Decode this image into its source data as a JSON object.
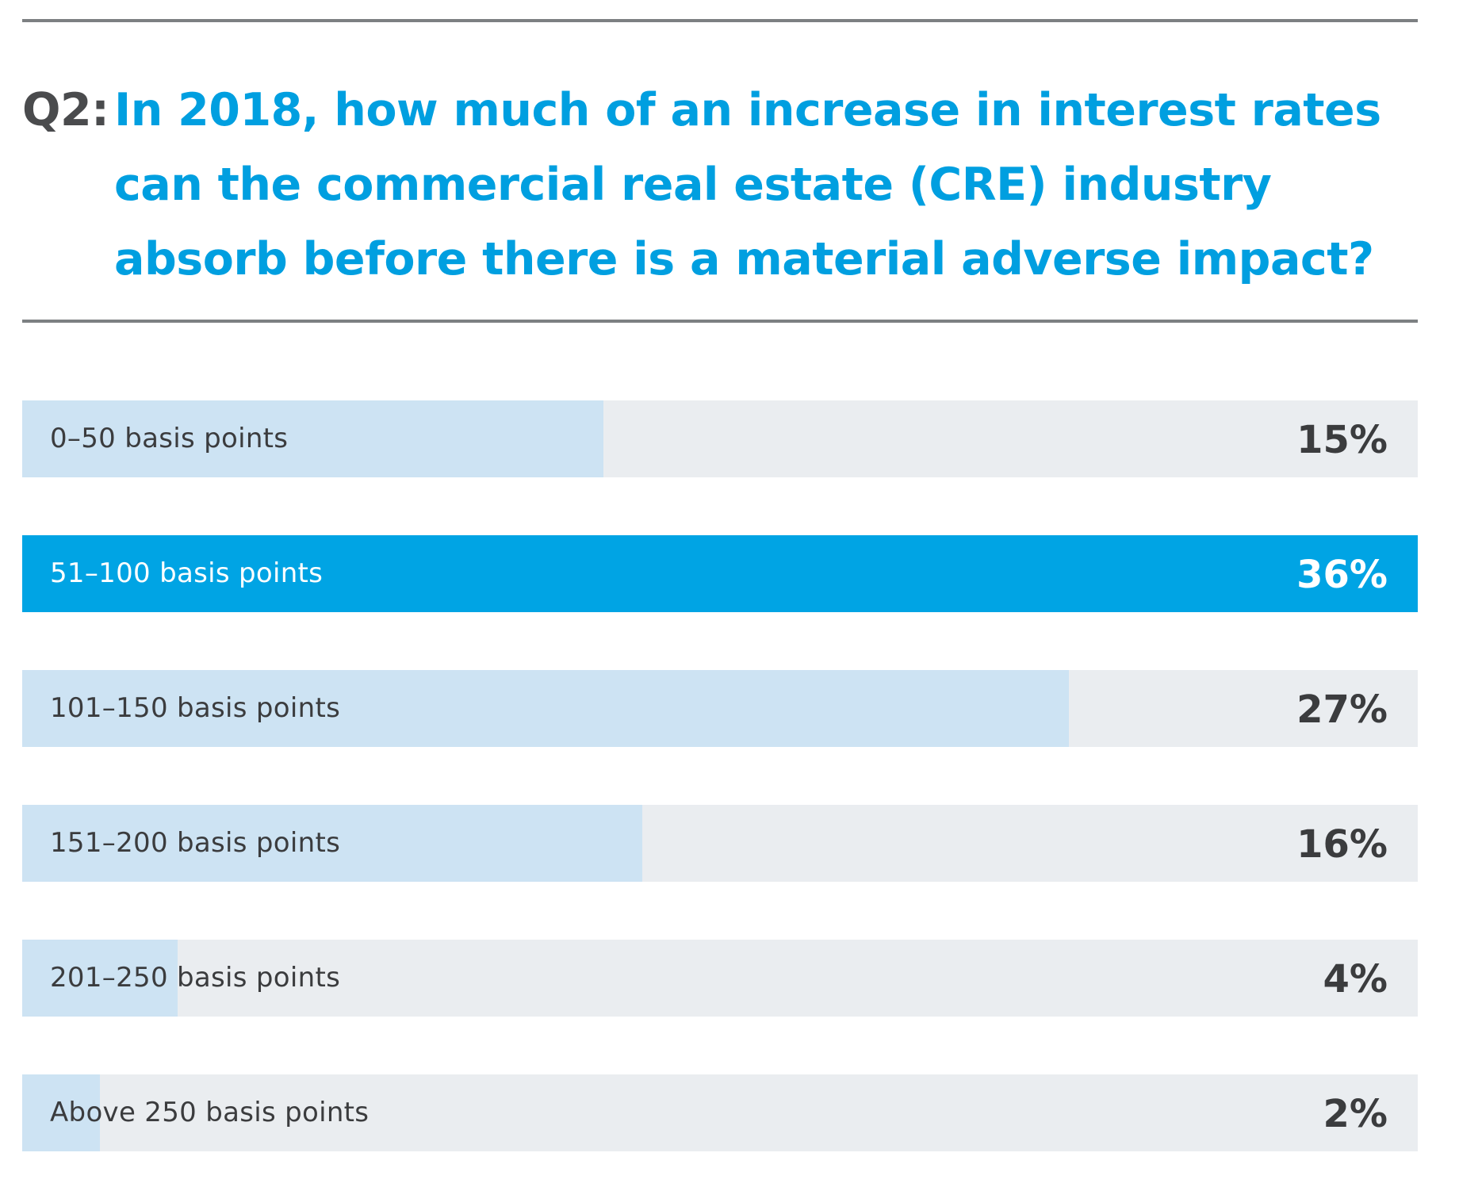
{
  "title": {
    "prefix": "Q2:",
    "text": "In 2018, how much of an increase in interest rates can the commercial real estate (CRE) industry absorb before there is a material adverse impact?"
  },
  "colors": {
    "accent": "#00a4e4",
    "bar_fill": "#cde3f3",
    "track": "#eaedf0",
    "text": "#3b3c3e",
    "rule": "#7d8082"
  },
  "chart_data": {
    "type": "bar",
    "orientation": "horizontal",
    "title": "Q2: In 2018, how much of an increase in interest rates can the commercial real estate (CRE) industry absorb before there is a material adverse impact?",
    "categories": [
      "0–50 basis points",
      "51–100 basis points",
      "101–150 basis points",
      "151–200 basis points",
      "201–250 basis points",
      "Above 250 basis points"
    ],
    "values": [
      15,
      36,
      27,
      16,
      4,
      2
    ],
    "value_labels": [
      "15%",
      "36%",
      "27%",
      "16%",
      "4%",
      "2%"
    ],
    "highlight_index": 1,
    "xlim": [
      0,
      36
    ],
    "unit": "%"
  }
}
